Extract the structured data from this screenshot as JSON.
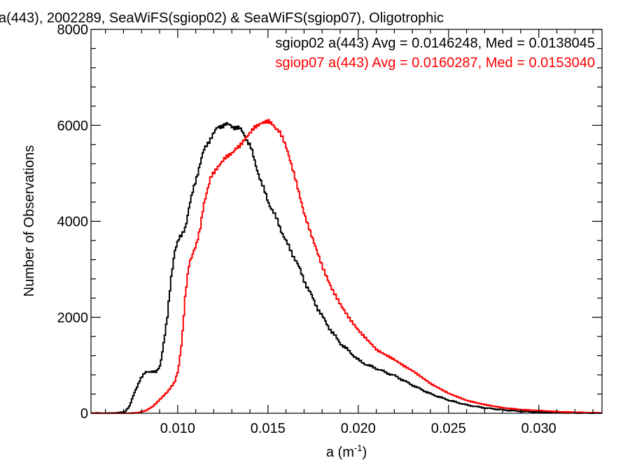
{
  "chart_data": {
    "type": "line",
    "title": "a(443), 2002289, SeaWiFS(sgiop02) & SeaWiFS(sgiop07), Oligotrophic",
    "xlabel": "a (m",
    "xlabel_sup": "-1",
    "xlabel_close": ")",
    "ylabel": "Number of Observations",
    "xlim": [
      0.0052,
      0.0335
    ],
    "ylim": [
      0,
      8000
    ],
    "x_ticks": [
      0.01,
      0.015,
      0.02,
      0.025,
      0.03
    ],
    "x_tick_labels": [
      "0.010",
      "0.015",
      "0.020",
      "0.025",
      "0.030"
    ],
    "y_ticks": [
      0,
      2000,
      4000,
      6000,
      8000
    ],
    "y_tick_labels": [
      "0",
      "2000",
      "4000",
      "6000",
      "8000"
    ],
    "grid": false,
    "legend": {
      "placement": "top-right",
      "entries": [
        "sgiop02 a(443) Avg = 0.0146248, Med = 0.0138045",
        "sgiop07 a(443) Avg = 0.0160287, Med = 0.0153040"
      ]
    },
    "series": [
      {
        "name": "sgiop02",
        "color": "#000000",
        "x": [
          0.0052,
          0.0062,
          0.007,
          0.0073,
          0.0076,
          0.0079,
          0.0082,
          0.0085,
          0.0088,
          0.009,
          0.0092,
          0.0094,
          0.0096,
          0.0098,
          0.01,
          0.0102,
          0.0104,
          0.0106,
          0.0108,
          0.011,
          0.0112,
          0.0114,
          0.0116,
          0.0118,
          0.012,
          0.0122,
          0.0124,
          0.0126,
          0.0128,
          0.013,
          0.0132,
          0.0134,
          0.0136,
          0.0138,
          0.014,
          0.0142,
          0.0144,
          0.0146,
          0.0148,
          0.015,
          0.0155,
          0.016,
          0.0165,
          0.017,
          0.0175,
          0.018,
          0.0185,
          0.019,
          0.0195,
          0.02,
          0.0205,
          0.021,
          0.0215,
          0.022,
          0.0225,
          0.023,
          0.024,
          0.025,
          0.026,
          0.027,
          0.028,
          0.029,
          0.03,
          0.031,
          0.032,
          0.0335
        ],
        "values": [
          0,
          0,
          20,
          150,
          450,
          720,
          850,
          880,
          850,
          1000,
          1500,
          2000,
          2800,
          3400,
          3600,
          3700,
          3900,
          4300,
          4600,
          4900,
          5200,
          5450,
          5600,
          5750,
          5850,
          5950,
          6000,
          6020,
          6000,
          5980,
          5960,
          5920,
          5850,
          5700,
          5550,
          5300,
          5050,
          4800,
          4600,
          4400,
          4000,
          3550,
          3200,
          2750,
          2350,
          2000,
          1700,
          1450,
          1280,
          1100,
          1000,
          930,
          850,
          780,
          680,
          580,
          400,
          270,
          170,
          110,
          70,
          40,
          25,
          15,
          8,
          4
        ]
      },
      {
        "name": "sgiop07",
        "color": "#ff0000",
        "x": [
          0.0052,
          0.0072,
          0.0078,
          0.0082,
          0.0086,
          0.009,
          0.0094,
          0.0098,
          0.01,
          0.0102,
          0.0104,
          0.0106,
          0.0108,
          0.011,
          0.0112,
          0.0114,
          0.0116,
          0.0118,
          0.012,
          0.0122,
          0.0124,
          0.0126,
          0.0128,
          0.013,
          0.0132,
          0.0134,
          0.0136,
          0.0138,
          0.014,
          0.0142,
          0.0144,
          0.0146,
          0.0148,
          0.015,
          0.0152,
          0.0154,
          0.0156,
          0.0158,
          0.016,
          0.0165,
          0.017,
          0.0175,
          0.018,
          0.0185,
          0.019,
          0.0195,
          0.02,
          0.0205,
          0.021,
          0.0215,
          0.022,
          0.0225,
          0.023,
          0.024,
          0.025,
          0.026,
          0.027,
          0.028,
          0.029,
          0.03,
          0.031,
          0.032,
          0.0335
        ],
        "values": [
          0,
          0,
          20,
          60,
          150,
          300,
          450,
          650,
          900,
          1500,
          2500,
          3100,
          3300,
          3500,
          3800,
          4300,
          4600,
          4900,
          5000,
          5100,
          5200,
          5300,
          5350,
          5400,
          5500,
          5550,
          5650,
          5750,
          5850,
          5950,
          6000,
          6050,
          6080,
          6100,
          6050,
          5950,
          5900,
          5750,
          5550,
          4900,
          4150,
          3600,
          3050,
          2600,
          2250,
          1950,
          1700,
          1500,
          1300,
          1200,
          1100,
          980,
          880,
          620,
          420,
          270,
          180,
          110,
          70,
          50,
          30,
          20,
          10
        ]
      }
    ]
  }
}
